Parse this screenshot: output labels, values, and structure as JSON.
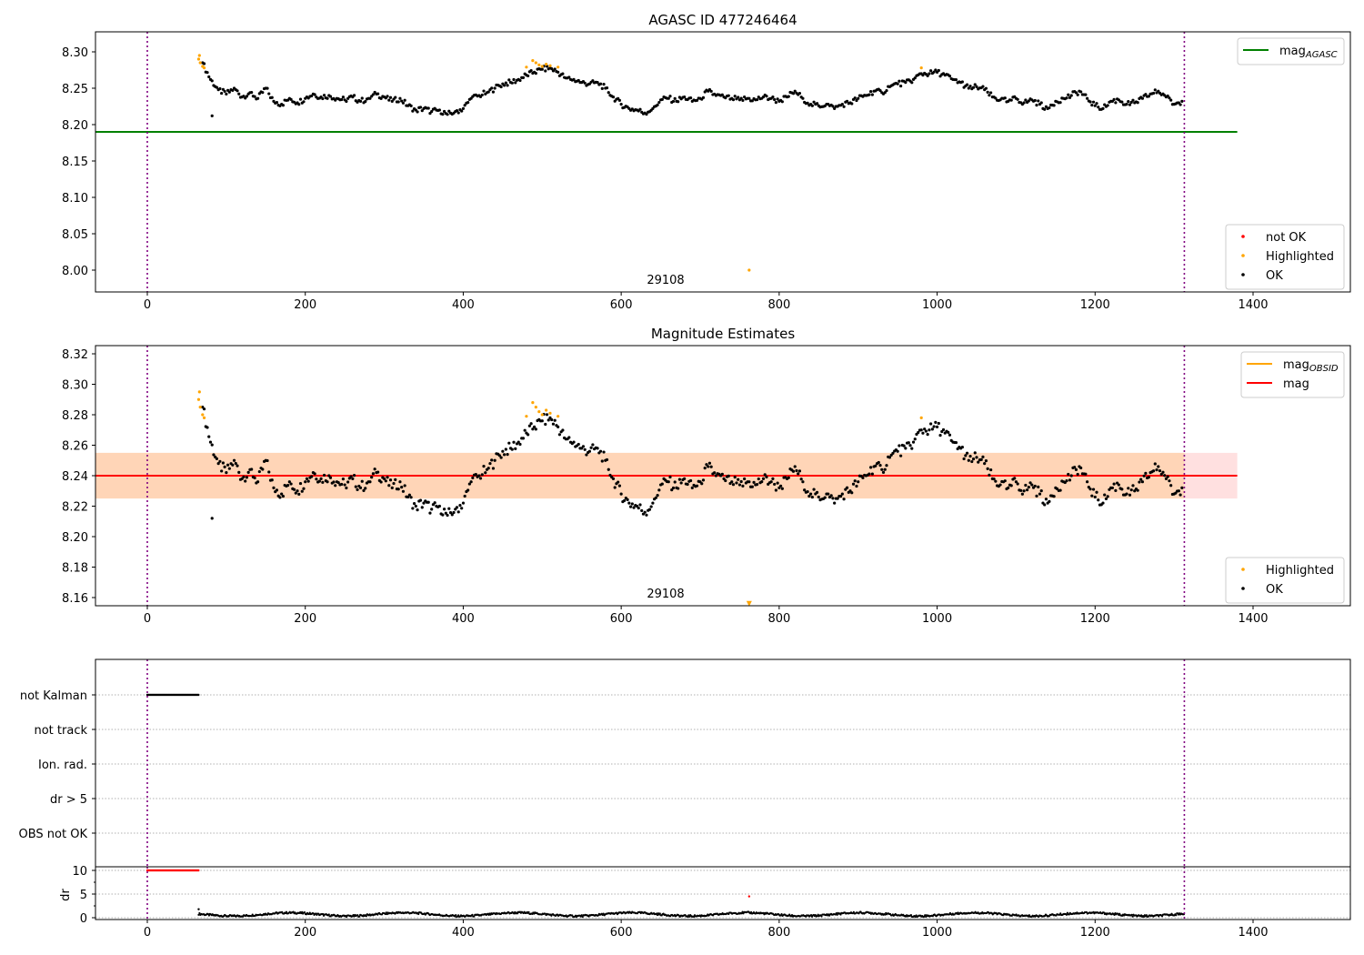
{
  "chart_data": [
    {
      "type": "scatter",
      "title": "AGASC ID 477246464",
      "xlim": [
        -65,
        1525
      ],
      "ylim": [
        7.97,
        8.327
      ],
      "xticks": [
        0,
        200,
        400,
        600,
        800,
        1000,
        1200,
        1400
      ],
      "yticks": [
        "8.00",
        "8.05",
        "8.10",
        "8.15",
        "8.20",
        "8.25",
        "8.30"
      ],
      "mag_agasc": 8.19,
      "mag_agasc_xmax": 1380,
      "vlines": [
        0,
        1313
      ],
      "annotation": {
        "text": "29108",
        "x": 656
      },
      "legend_upper": [
        {
          "label": "mag",
          "sub": "AGASC",
          "color": "#008000"
        }
      ],
      "legend_lower": [
        {
          "label": "not OK",
          "color": "#ff0000"
        },
        {
          "label": "Highlighted",
          "color": "#ffa500"
        },
        {
          "label": "OK",
          "color": "#000000"
        }
      ],
      "ok_series": {
        "x0": 70,
        "step": 10,
        "values": [
          8.285,
          8.262,
          8.248,
          8.242,
          8.25,
          8.238,
          8.244,
          8.236,
          8.25,
          8.232,
          8.228,
          8.236,
          8.23,
          8.236,
          8.242,
          8.238,
          8.24,
          8.236,
          8.234,
          8.238,
          8.232,
          8.236,
          8.242,
          8.238,
          8.232,
          8.236,
          8.226,
          8.22,
          8.222,
          8.218,
          8.22,
          8.214,
          8.218,
          8.222,
          8.236,
          8.24,
          8.244,
          8.25,
          8.256,
          8.258,
          8.262,
          8.268,
          8.272,
          8.276,
          8.278,
          8.272,
          8.264,
          8.262,
          8.258,
          8.256,
          8.258,
          8.25,
          8.238,
          8.228,
          8.222,
          8.22,
          8.216,
          8.222,
          8.234,
          8.236,
          8.232,
          8.238,
          8.232,
          8.236,
          8.246,
          8.24,
          8.238,
          8.236,
          8.234,
          8.236,
          8.234,
          8.238,
          8.236,
          8.232,
          8.238,
          8.246,
          8.236,
          8.228,
          8.226,
          8.228,
          8.222,
          8.228,
          8.23,
          8.236,
          8.24,
          8.246,
          8.244,
          8.252,
          8.256,
          8.258,
          8.262,
          8.27,
          8.27,
          8.272,
          8.268,
          8.262,
          8.258,
          8.25,
          8.252,
          8.248,
          8.238,
          8.234,
          8.232,
          8.236,
          8.23,
          8.234,
          8.228,
          8.222,
          8.232,
          8.236,
          8.24,
          8.246,
          8.236,
          8.226,
          8.222,
          8.232,
          8.234,
          8.228,
          8.23,
          8.236,
          8.242,
          8.246,
          8.238,
          8.228,
          8.232
        ]
      },
      "ok_outliers": [
        [
          82,
          8.212
        ]
      ],
      "highlighted": [
        [
          65,
          8.29
        ],
        [
          66,
          8.295
        ],
        [
          67,
          8.285
        ],
        [
          70,
          8.28
        ],
        [
          72,
          8.278
        ],
        [
          480,
          8.279
        ],
        [
          488,
          8.288
        ],
        [
          492,
          8.285
        ],
        [
          496,
          8.282
        ],
        [
          500,
          8.28
        ],
        [
          505,
          8.283
        ],
        [
          510,
          8.281
        ],
        [
          520,
          8.279
        ],
        [
          980,
          8.278
        ],
        [
          762,
          8.0
        ]
      ]
    },
    {
      "type": "scatter",
      "title": "Magnitude Estimates",
      "xlim": [
        -65,
        1525
      ],
      "ylim": [
        8.155,
        8.325
      ],
      "xticks": [
        0,
        200,
        400,
        600,
        800,
        1000,
        1200,
        1400
      ],
      "yticks": [
        "8.16",
        "8.18",
        "8.20",
        "8.22",
        "8.24",
        "8.26",
        "8.28",
        "8.30",
        "8.32"
      ],
      "mag": 8.24,
      "mag_band": [
        8.225,
        8.255
      ],
      "mag_obsid_band_xmax": 1313,
      "band_xmax": 1380,
      "vlines": [
        0,
        1313
      ],
      "annotation": {
        "text": "29108",
        "x": 656
      },
      "legend_upper": [
        {
          "label": "mag",
          "sub": "OBSID",
          "color": "#ffa500"
        },
        {
          "label": "mag",
          "sub": "",
          "color": "#ff0000"
        }
      ],
      "legend_lower": [
        {
          "label": "Highlighted",
          "color": "#ffa500"
        },
        {
          "label": "OK",
          "color": "#000000"
        }
      ],
      "highlighted_offscale": [
        [
          762,
          8.156
        ]
      ]
    },
    {
      "type": "scatter",
      "title": "",
      "flag_rows": [
        "not Kalman",
        "not track",
        "Ion. rad.",
        "dr > 5",
        "OBS not OK"
      ],
      "not_kalman_range": [
        0,
        65
      ],
      "dr": {
        "ylabel": "dr",
        "yticks": [
          "0",
          "5",
          "10"
        ],
        "ylim": [
          -0.5,
          10.7
        ],
        "red_range": [
          0,
          65
        ],
        "red_value": 10,
        "red_outlier": [
          762,
          4.5
        ],
        "black_x0": 65,
        "black_x1": 1313,
        "black_level": 0.7
      },
      "xticks": [
        0,
        200,
        400,
        600,
        800,
        1000,
        1200,
        1400
      ]
    }
  ]
}
